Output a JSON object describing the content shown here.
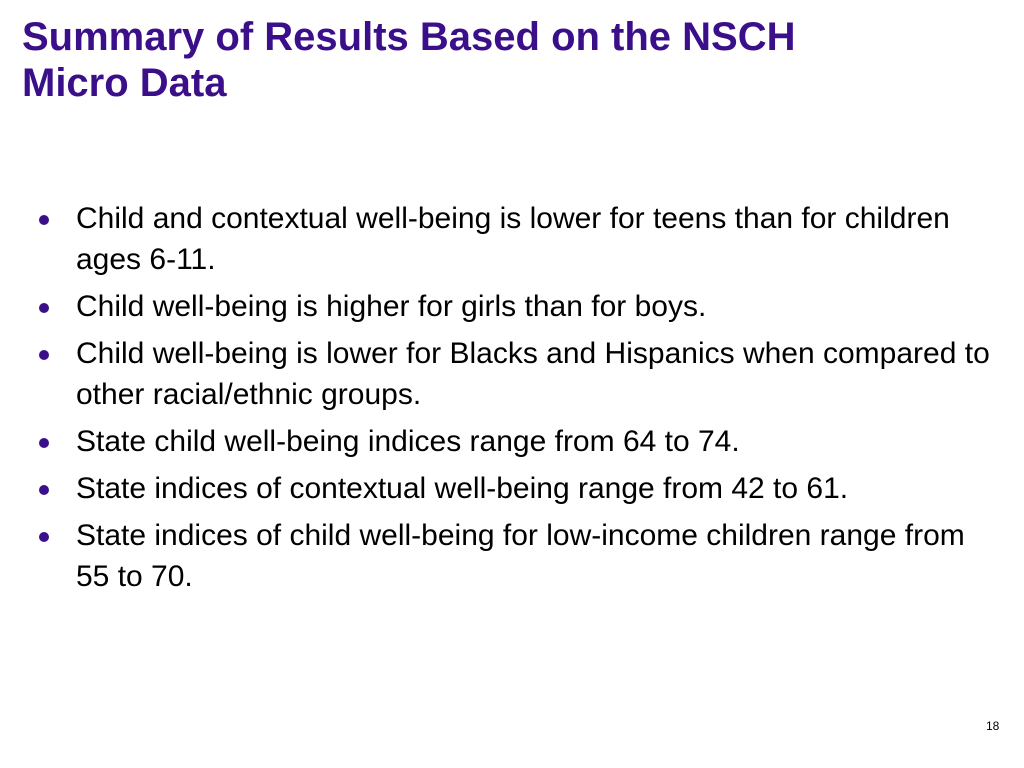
{
  "header": {
    "title": "Summary of Results Based on the NSCH Micro Data"
  },
  "bullets": [
    "Child and contextual well-being is lower for teens than for children ages 6-11.",
    "Child well-being is higher for girls than for boys.",
    "Child well-being is lower for Blacks and Hispanics when compared to other racial/ethnic groups.",
    "State child well-being indices range from 64 to 74.",
    "State indices of contextual well-being range from 42 to 61.",
    "State indices of child well-being for low-income children range from 55 to 70."
  ],
  "footer": {
    "page_number": "18"
  }
}
